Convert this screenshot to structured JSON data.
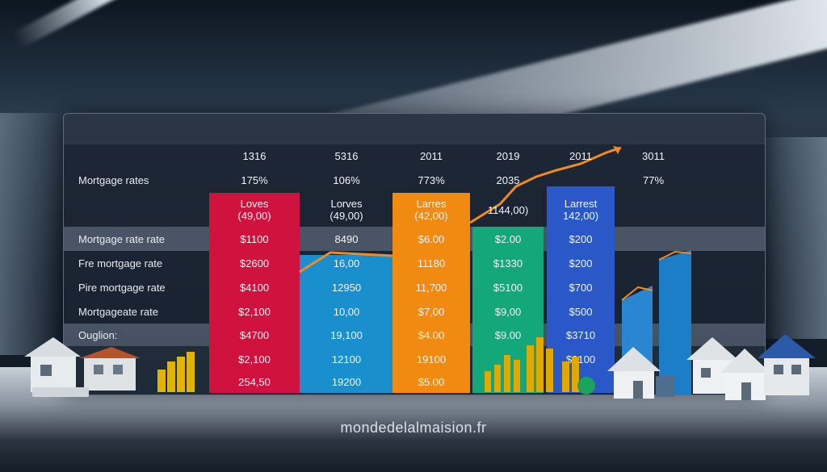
{
  "headers": [
    "1316",
    "5316",
    "2011",
    "2019",
    "2011",
    "3011"
  ],
  "rows": [
    {
      "label": "Mortgage rates",
      "cells": [
        "175%",
        "106%",
        "773%",
        "2035",
        "",
        "77%"
      ]
    },
    {
      "label": "",
      "cells": [
        "Loves\n(49,00)",
        "Lorves\n(49,00)",
        "Larres\n(42,00)",
        "1144,00)",
        "Larrest\n142,00)",
        ""
      ]
    },
    {
      "label": "Mortgage rate rate",
      "cells": [
        "$1100",
        "8490",
        "$6.00",
        "$2.00",
        "$200",
        ""
      ]
    },
    {
      "label": "Fre mortgage rate",
      "cells": [
        "$2600",
        "16,00",
        "11180",
        "$1330",
        "$200",
        ""
      ]
    },
    {
      "label": "Pire mortgage rate",
      "cells": [
        "$4100",
        "12950",
        "11,700",
        "$5100",
        "$700",
        ""
      ]
    },
    {
      "label": "Mortgageate rate",
      "cells": [
        "$2,100",
        "10,00",
        "$7,00",
        "$9,00",
        "$500",
        ""
      ]
    },
    {
      "label": "Ouglion:",
      "cells": [
        "$4700",
        "19,100",
        "$4.00",
        "$9.00",
        "$3710",
        ""
      ]
    },
    {
      "label": "",
      "cells": [
        "$2,100",
        "12100",
        "19100",
        "",
        "$3100",
        ""
      ]
    },
    {
      "label": "",
      "cells": [
        "254,50",
        "19200",
        "$5.00",
        "",
        "",
        ""
      ]
    }
  ],
  "colors": {
    "red": "#d0123f",
    "blue": "#1a8fce",
    "orange": "#f08a10",
    "green": "#14a77a",
    "royal": "#2a58c8",
    "trend": "#f08a24"
  },
  "watermark": "mondedelalmaision.fr"
}
